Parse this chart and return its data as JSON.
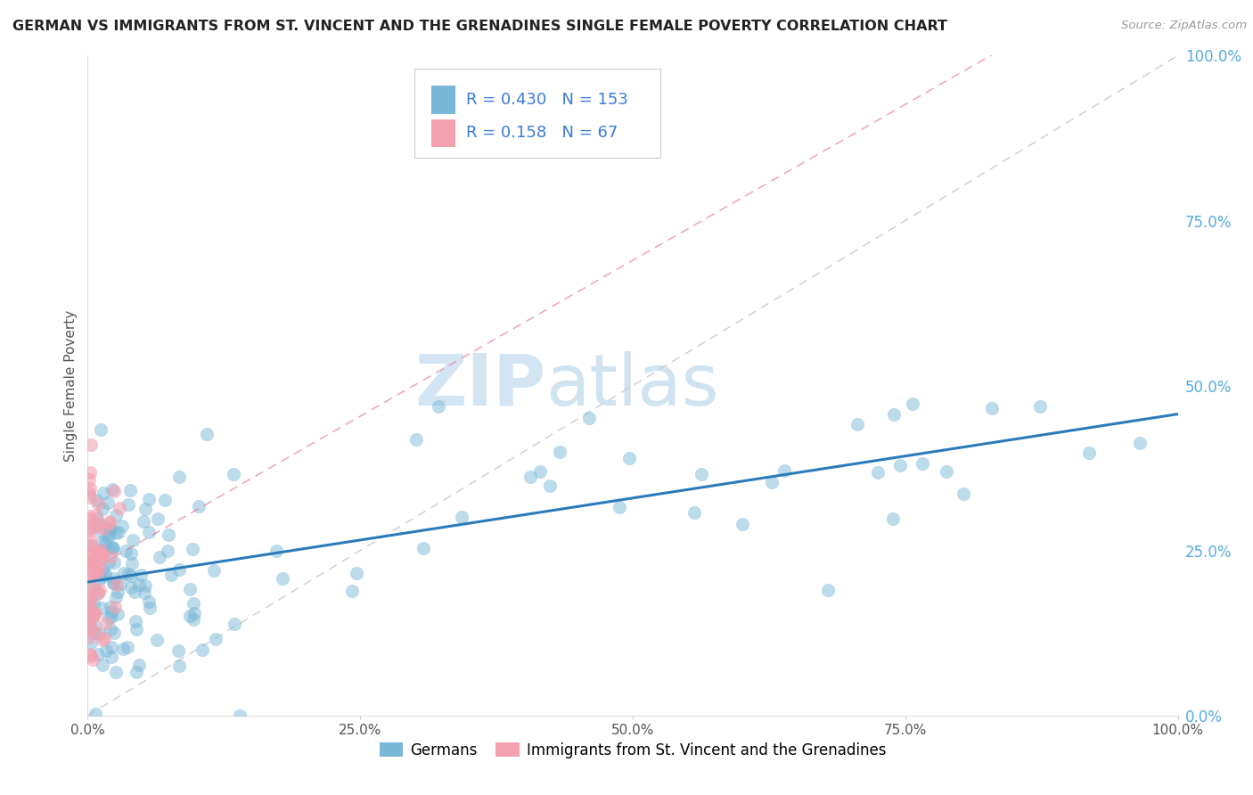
{
  "title": "GERMAN VS IMMIGRANTS FROM ST. VINCENT AND THE GRENADINES SINGLE FEMALE POVERTY CORRELATION CHART",
  "source": "Source: ZipAtlas.com",
  "xlabel": "",
  "ylabel": "Single Female Poverty",
  "watermark_zip": "ZIP",
  "watermark_atlas": "atlas",
  "legend_german": "Germans",
  "legend_svg": "Immigrants from St. Vincent and the Grenadines",
  "R_german": 0.43,
  "N_german": 153,
  "R_svg": 0.158,
  "N_svg": 67,
  "blue_color": "#7ab8d9",
  "pink_color": "#f4a0b0",
  "blue_line_color": "#2b7bba",
  "pink_line_color": "#e87090",
  "title_color": "#222222",
  "stat_color": "#3a7bd5",
  "right_tick_color": "#55aadd",
  "ytick_labels": [
    "0.0%",
    "25.0%",
    "50.0%",
    "75.0%",
    "100.0%"
  ],
  "ytick_values": [
    0.0,
    0.25,
    0.5,
    0.75,
    1.0
  ],
  "xtick_labels": [
    "0.0%",
    "25.0%",
    "50.0%",
    "75.0%",
    "100.0%"
  ],
  "xtick_values": [
    0.0,
    0.25,
    0.5,
    0.75,
    1.0
  ]
}
